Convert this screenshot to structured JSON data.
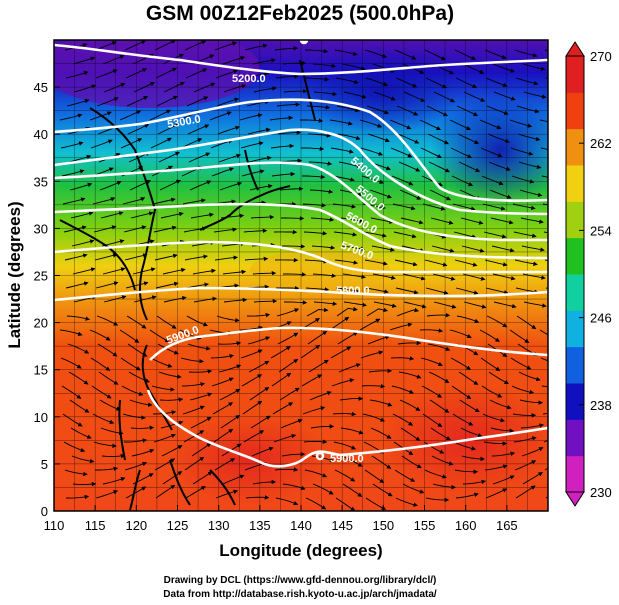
{
  "title": "GSM 00Z12Feb2025 (500.0hPa)",
  "x_axis": {
    "label": "Longitude (degrees)",
    "range": [
      110,
      170
    ],
    "ticks": [
      "110",
      "115",
      "120",
      "125",
      "130",
      "135",
      "140",
      "145",
      "150",
      "155",
      "160",
      "165"
    ]
  },
  "y_axis": {
    "label": "Latitude  (degrees)",
    "range": [
      0,
      50
    ],
    "ticks": [
      "0",
      "5",
      "10",
      "15",
      "20",
      "25",
      "30",
      "35",
      "40",
      "45"
    ]
  },
  "colorbar": {
    "ticks": [
      "230",
      "238",
      "246",
      "254",
      "262",
      "270"
    ],
    "range": [
      230,
      270
    ],
    "colors": [
      "#d020c0",
      "#7010c0",
      "#1010c0",
      "#1060e0",
      "#10b0e0",
      "#10d0a0",
      "#20c020",
      "#a0d010",
      "#f0d010",
      "#f09010",
      "#f04010",
      "#e02020"
    ]
  },
  "contours": [
    {
      "label": "5200.0"
    },
    {
      "label": "5300.0"
    },
    {
      "label": "5400.0"
    },
    {
      "label": "5500.0"
    },
    {
      "label": "5600.0"
    },
    {
      "label": "5700.0"
    },
    {
      "label": "5800.0"
    },
    {
      "label": "5900.0"
    }
  ],
  "credits": {
    "line1": "Drawing by DCL (https://www.gfd-dennou.org/library/dcl/)",
    "line2": "Data from http://database.rish.kyoto-u.ac.jp/arch/jmadata/"
  }
}
